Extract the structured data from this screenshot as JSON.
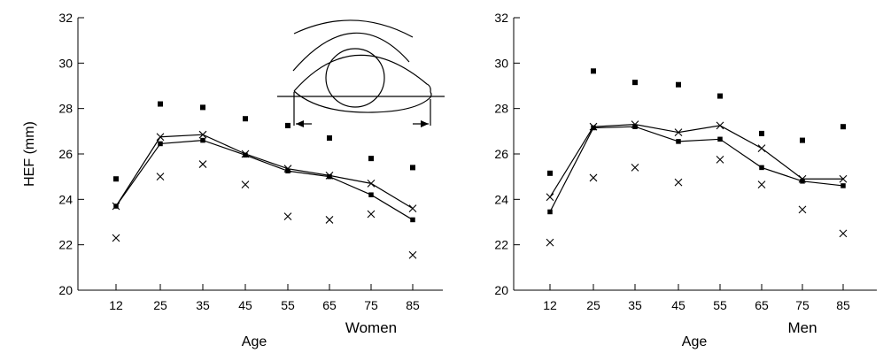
{
  "colors": {
    "ink": "#000000",
    "background": "#ffffff"
  },
  "chart_data": [
    {
      "type": "scatter",
      "panel": "Women",
      "title": "",
      "xlabel": "Age",
      "ylabel": "HEF (mm)",
      "categories": [
        "12",
        "25",
        "35",
        "45",
        "55",
        "65",
        "75",
        "85"
      ],
      "ylim": [
        20,
        32
      ],
      "yticks": [
        20,
        22,
        24,
        26,
        28,
        30,
        32
      ],
      "grid": false,
      "series": [
        {
          "marker": "square",
          "kind": "points",
          "values": [
            24.9,
            28.2,
            28.05,
            27.55,
            27.25,
            26.7,
            25.8,
            25.4
          ]
        },
        {
          "marker": "square",
          "kind": "line",
          "values": [
            23.7,
            26.45,
            26.6,
            25.95,
            25.25,
            25.0,
            24.2,
            23.1
          ]
        },
        {
          "marker": "cross",
          "kind": "line",
          "values": [
            23.7,
            26.75,
            26.85,
            26.0,
            25.35,
            25.05,
            24.7,
            23.6
          ]
        },
        {
          "marker": "cross",
          "kind": "points",
          "values": [
            22.3,
            25.0,
            25.55,
            24.65,
            23.25,
            23.1,
            23.35,
            21.55
          ]
        }
      ]
    },
    {
      "type": "scatter",
      "panel": "Men",
      "title": "",
      "xlabel": "Age",
      "ylabel": "",
      "categories": [
        "12",
        "25",
        "35",
        "45",
        "55",
        "65",
        "75",
        "85"
      ],
      "ylim": [
        20,
        32
      ],
      "yticks": [
        20,
        22,
        24,
        26,
        28,
        30,
        32
      ],
      "grid": false,
      "series": [
        {
          "marker": "square",
          "kind": "points",
          "values": [
            25.15,
            29.65,
            29.15,
            29.05,
            28.55,
            26.9,
            26.6,
            27.2
          ]
        },
        {
          "marker": "square",
          "kind": "line",
          "values": [
            23.45,
            27.15,
            27.2,
            26.55,
            26.65,
            25.4,
            24.8,
            24.6
          ]
        },
        {
          "marker": "cross",
          "kind": "line",
          "values": [
            24.1,
            27.2,
            27.3,
            26.95,
            27.25,
            26.25,
            24.9,
            24.9
          ]
        },
        {
          "marker": "cross",
          "kind": "points",
          "values": [
            22.1,
            24.95,
            25.4,
            24.75,
            25.75,
            24.65,
            23.55,
            22.5
          ]
        }
      ]
    }
  ]
}
